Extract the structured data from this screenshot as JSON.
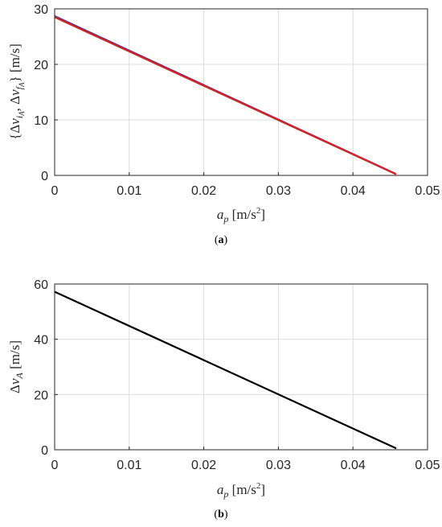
{
  "chart_data": [
    {
      "type": "line",
      "panel": "a",
      "xlabel": "a_p [m/s^2]",
      "ylabel": "{Δv_{i_A}, Δv_{f_A}} [m/s]",
      "xlim": [
        0,
        0.05
      ],
      "ylim": [
        0,
        30
      ],
      "xticks": [
        0,
        0.01,
        0.02,
        0.03,
        0.04,
        0.05
      ],
      "yticks": [
        0,
        10,
        20,
        30
      ],
      "grid": true,
      "series": [
        {
          "color": "#3a3a9c",
          "x": [
            0,
            0.0457
          ],
          "values": [
            28.7,
            0.3
          ]
        },
        {
          "color": "#e02020",
          "x": [
            0,
            0.0458
          ],
          "values": [
            28.5,
            0.2
          ]
        }
      ]
    },
    {
      "type": "line",
      "panel": "b",
      "xlabel": "a_p [m/s^2]",
      "ylabel": "Δv_A [m/s]",
      "xlim": [
        0,
        0.05
      ],
      "ylim": [
        0,
        60
      ],
      "xticks": [
        0,
        0.01,
        0.02,
        0.03,
        0.04,
        0.05
      ],
      "yticks": [
        0,
        20,
        40,
        60
      ],
      "grid": true,
      "series": [
        {
          "color": "#000000",
          "x": [
            0,
            0.0458
          ],
          "values": [
            57.2,
            0.5
          ]
        }
      ]
    }
  ],
  "captions": {
    "a": "a",
    "b": "b"
  }
}
